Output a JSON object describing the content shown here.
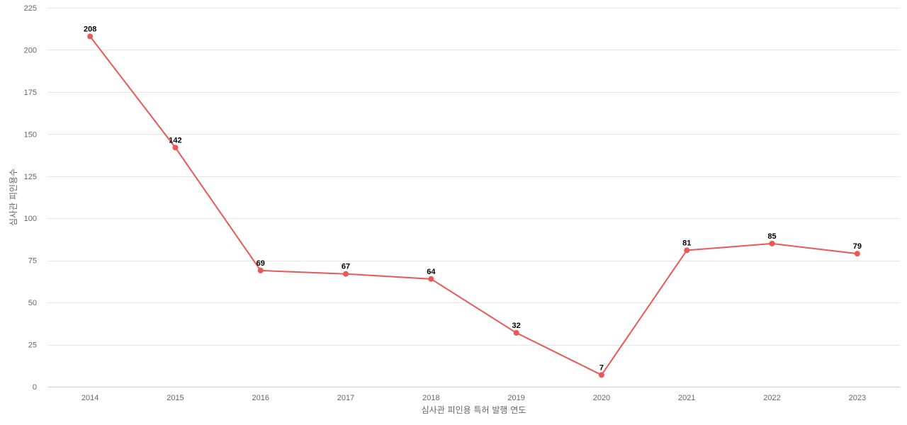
{
  "chart_data": {
    "type": "line",
    "title": "",
    "xlabel": "심사관 피인용 특허 발행 연도",
    "ylabel": "심사관 피인용수",
    "categories": [
      "2014",
      "2015",
      "2016",
      "2017",
      "2018",
      "2019",
      "2020",
      "2021",
      "2022",
      "2023"
    ],
    "series": [
      {
        "values": [
          208,
          142,
          69,
          67,
          64,
          32,
          7,
          81,
          85,
          79
        ],
        "color": "#eb5757"
      }
    ],
    "ylim": [
      0,
      225
    ],
    "yticks": [
      0,
      25,
      50,
      75,
      100,
      125,
      150,
      175,
      200,
      225
    ],
    "grid": true,
    "legend": "none",
    "data_labels": true
  }
}
